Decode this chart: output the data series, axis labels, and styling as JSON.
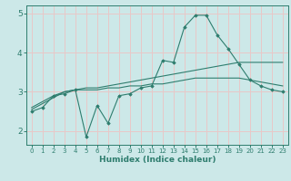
{
  "xlabel": "Humidex (Indice chaleur)",
  "x_values": [
    0,
    1,
    2,
    3,
    4,
    5,
    6,
    7,
    8,
    9,
    10,
    11,
    12,
    13,
    14,
    15,
    16,
    17,
    18,
    19,
    20,
    21,
    22,
    23
  ],
  "line1_y": [
    2.5,
    2.6,
    2.9,
    2.95,
    3.05,
    1.85,
    2.65,
    2.2,
    2.9,
    2.95,
    3.1,
    3.15,
    3.8,
    3.75,
    4.65,
    4.95,
    4.95,
    4.45,
    4.1,
    3.7,
    3.3,
    3.15,
    3.05,
    3.0
  ],
  "line2_y": [
    2.55,
    2.7,
    2.85,
    3.0,
    3.05,
    3.1,
    3.1,
    3.15,
    3.2,
    3.25,
    3.3,
    3.35,
    3.4,
    3.45,
    3.5,
    3.55,
    3.6,
    3.65,
    3.7,
    3.75,
    3.75,
    3.75,
    3.75,
    3.75
  ],
  "line3_y": [
    2.6,
    2.75,
    2.9,
    3.0,
    3.05,
    3.05,
    3.05,
    3.1,
    3.1,
    3.15,
    3.15,
    3.2,
    3.2,
    3.25,
    3.3,
    3.35,
    3.35,
    3.35,
    3.35,
    3.35,
    3.3,
    3.25,
    3.2,
    3.15
  ],
  "line_color": "#2e7d6e",
  "bg_color": "#cce8e8",
  "grid_color": "#e8c8c8",
  "axis_color": "#2e7d6e",
  "ylim": [
    1.65,
    5.2
  ],
  "xlim": [
    -0.5,
    23.5
  ],
  "yticks": [
    2,
    3,
    4,
    5
  ],
  "xticks": [
    0,
    1,
    2,
    3,
    4,
    5,
    6,
    7,
    8,
    9,
    10,
    11,
    12,
    13,
    14,
    15,
    16,
    17,
    18,
    19,
    20,
    21,
    22,
    23
  ]
}
